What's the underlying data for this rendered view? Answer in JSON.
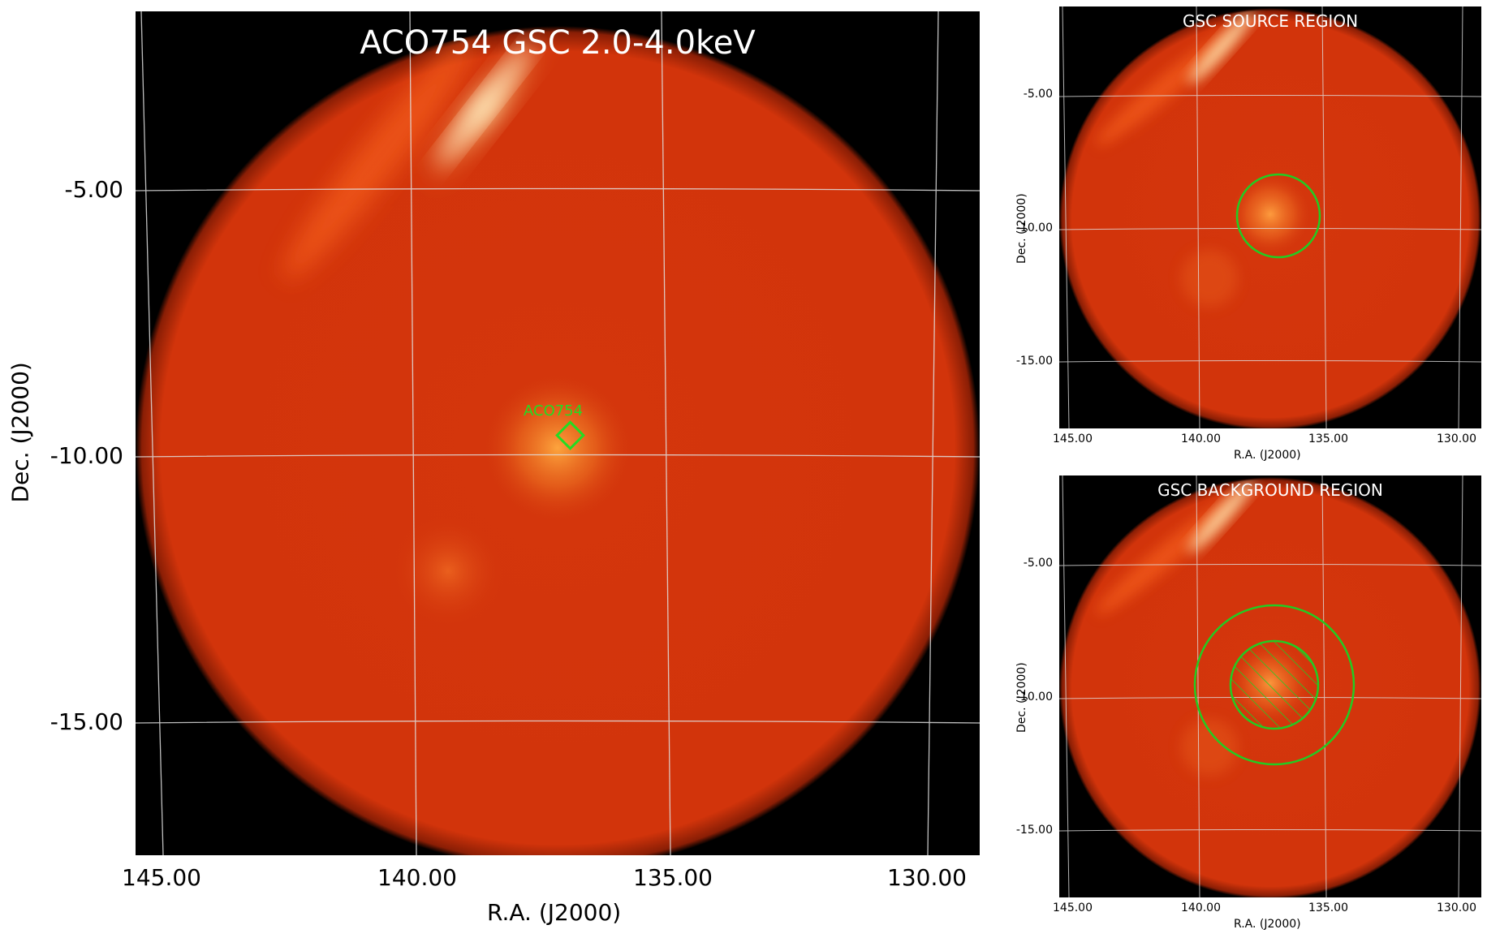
{
  "main_panel": {
    "title": "ACO754 GSC 2.0-4.0keV",
    "source_label": "ACO754",
    "xlabel": "R.A. (J2000)",
    "ylabel": "Dec. (J2000)",
    "xticks": [
      "145.00",
      "140.00",
      "135.00",
      "130.00"
    ],
    "yticks": [
      "-5.00",
      "-10.00",
      "-15.00"
    ]
  },
  "source_panel": {
    "title": "GSC SOURCE REGION",
    "xlabel": "R.A. (J2000)",
    "ylabel": "Dec. (J2000)",
    "xticks": [
      "145.00",
      "140.00",
      "135.00",
      "130.00"
    ],
    "yticks": [
      "-5.00",
      "-10.00",
      "-15.00"
    ]
  },
  "background_panel": {
    "title": "GSC BACKGROUND REGION",
    "xlabel": "R.A. (J2000)",
    "ylabel": "Dec. (J2000)",
    "xticks": [
      "145.00",
      "140.00",
      "135.00",
      "130.00"
    ],
    "yticks": [
      "-5.00",
      "-10.00",
      "-15.00"
    ]
  },
  "colors": {
    "background": "#000000",
    "field": "#d8360e",
    "region": "#22cc22",
    "grid": "#dddddd"
  }
}
